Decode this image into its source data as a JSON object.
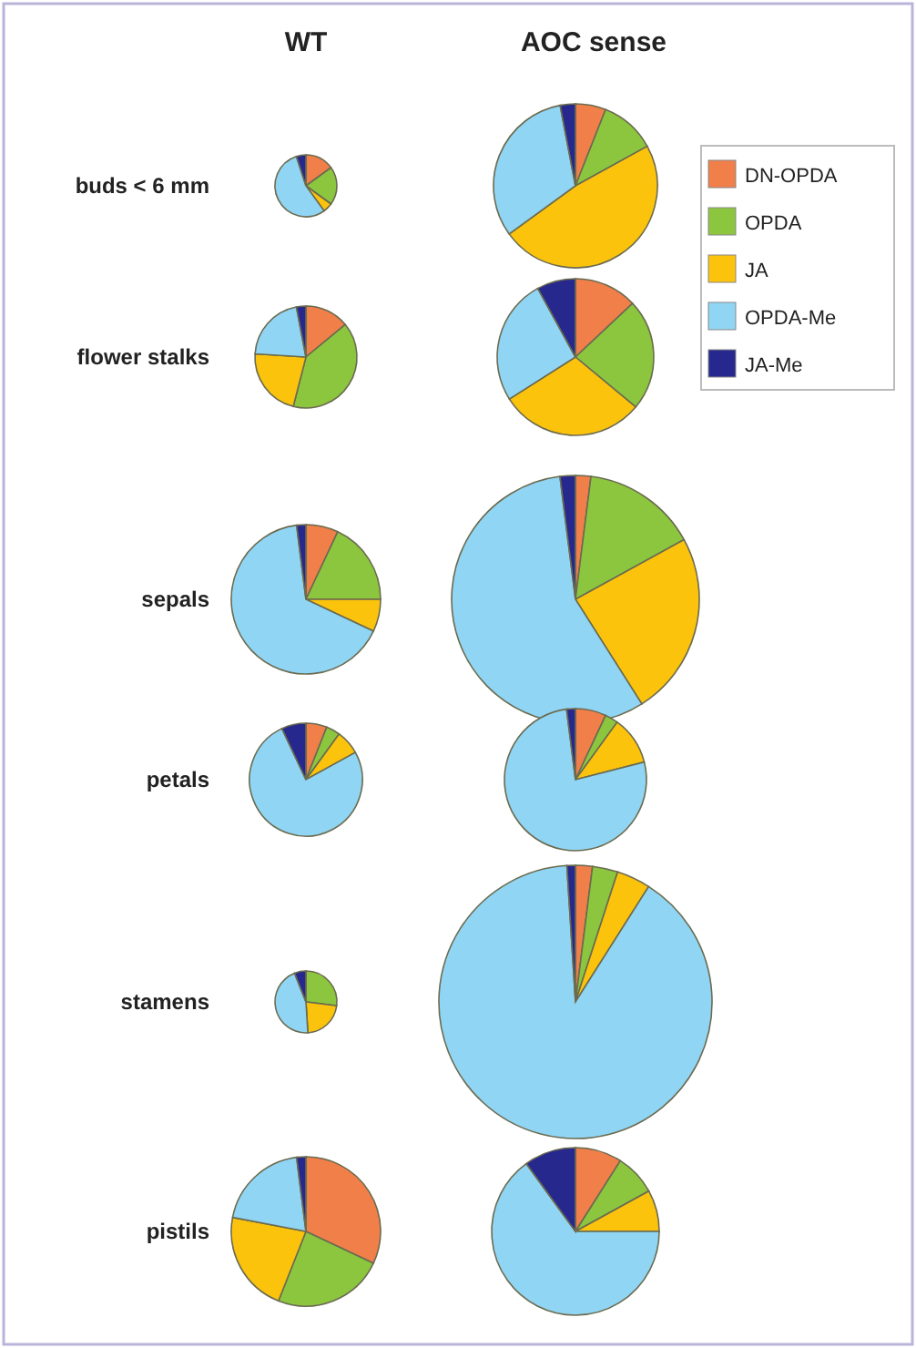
{
  "chart_data": [
    {
      "type": "pie",
      "annotations": [
        "WT",
        "buds < 6 mm"
      ],
      "categories": [
        null,
        null,
        null,
        null,
        null
      ],
      "values": [
        15,
        20,
        5,
        55,
        5
      ],
      "colors": [
        "#f07f4a",
        "#8cc63e",
        "#fcc30c",
        "#90d5f3",
        "#27288e"
      ]
    },
    {
      "type": "pie",
      "annotations": [
        "AOC sense"
      ],
      "legend": "right",
      "categories": [
        "DN-OPDA",
        "OPDA",
        "JA",
        "OPDA-Me",
        "JA-Me"
      ],
      "values": [
        6,
        11,
        48,
        32,
        3
      ],
      "colors": [
        "#f07f4a",
        "#8cc63e",
        "#fcc30c",
        "#90d5f3",
        "#27288e"
      ]
    },
    {
      "type": "pie",
      "annotations": [
        "flower stalks"
      ],
      "categories": [
        null,
        null,
        null,
        null,
        null
      ],
      "values": [
        14,
        40,
        22,
        21,
        3
      ],
      "colors": [
        "#f07f4a",
        "#8cc63e",
        "#fcc30c",
        "#90d5f3",
        "#27288e"
      ]
    },
    {
      "type": "pie",
      "categories": [
        null,
        null,
        null,
        null,
        null
      ],
      "values": [
        13,
        23,
        30,
        26,
        8
      ],
      "colors": [
        "#f07f4a",
        "#8cc63e",
        "#fcc30c",
        "#90d5f3",
        "#27288e"
      ]
    },
    {
      "type": "pie",
      "annotations": [
        "sepals"
      ],
      "categories": [
        null,
        null,
        null,
        null,
        null
      ],
      "values": [
        7,
        18,
        7,
        66,
        2
      ],
      "colors": [
        "#f07f4a",
        "#8cc63e",
        "#fcc30c",
        "#90d5f3",
        "#27288e"
      ]
    },
    {
      "type": "pie",
      "categories": [
        null,
        null,
        null,
        null,
        null
      ],
      "values": [
        2,
        15,
        24,
        57,
        2
      ],
      "colors": [
        "#f07f4a",
        "#8cc63e",
        "#fcc30c",
        "#90d5f3",
        "#27288e"
      ]
    },
    {
      "type": "pie",
      "annotations": [
        "petals"
      ],
      "categories": [
        null,
        null,
        null,
        null,
        null
      ],
      "values": [
        6,
        4,
        7,
        76,
        7
      ],
      "colors": [
        "#f07f4a",
        "#8cc63e",
        "#fcc30c",
        "#90d5f3",
        "#27288e"
      ]
    },
    {
      "type": "pie",
      "categories": [
        null,
        null,
        null,
        null,
        null
      ],
      "values": [
        7,
        3,
        11,
        77,
        2
      ],
      "colors": [
        "#f07f4a",
        "#8cc63e",
        "#fcc30c",
        "#90d5f3",
        "#27288e"
      ]
    },
    {
      "type": "pie",
      "annotations": [
        "stamens"
      ],
      "categories": [
        null,
        null,
        null,
        null,
        null
      ],
      "values": [
        null,
        27,
        22,
        45,
        6
      ],
      "colors": [
        "#f07f4a",
        "#8cc63e",
        "#fcc30c",
        "#90d5f3",
        "#27288e"
      ]
    },
    {
      "type": "pie",
      "categories": [
        null,
        null,
        null,
        null,
        null
      ],
      "values": [
        2,
        3,
        4,
        90,
        1
      ],
      "colors": [
        "#f07f4a",
        "#8cc63e",
        "#fcc30c",
        "#90d5f3",
        "#27288e"
      ]
    },
    {
      "type": "pie",
      "annotations": [
        "pistils"
      ],
      "categories": [
        null,
        null,
        null,
        null,
        null
      ],
      "values": [
        32,
        24,
        22,
        20,
        2
      ],
      "colors": [
        "#f07f4a",
        "#8cc63e",
        "#fcc30c",
        "#90d5f3",
        "#27288e"
      ]
    },
    {
      "type": "pie",
      "categories": [
        null,
        null,
        null,
        null,
        null
      ],
      "values": [
        9,
        8,
        8,
        65,
        10
      ],
      "colors": [
        "#f07f4a",
        "#8cc63e",
        "#fcc30c",
        "#90d5f3",
        "#27288e"
      ]
    }
  ]
}
